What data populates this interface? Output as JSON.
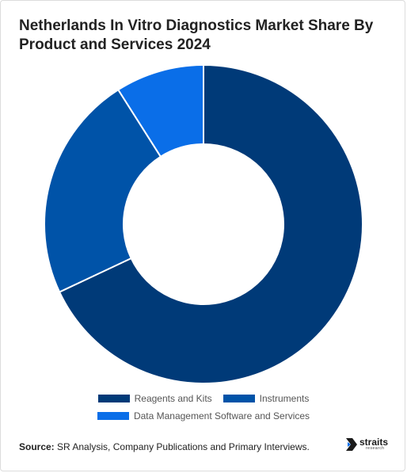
{
  "title": "Netherlands In Vitro Diagnostics Market Share By Product and Services 2024",
  "source_label": "Source:",
  "source_text": "SR Analysis, Company Publications and Primary Interviews.",
  "logo": {
    "main": "straits",
    "sub": "research"
  },
  "chart_data": {
    "type": "pie",
    "donut": true,
    "categories": [
      "Reagents and Kits",
      "Instruments",
      "Data Management Software and Services"
    ],
    "values": [
      68,
      23,
      9
    ],
    "colors": [
      "#003a78",
      "#0053a8",
      "#0a6ee8"
    ],
    "legend_position": "bottom"
  }
}
